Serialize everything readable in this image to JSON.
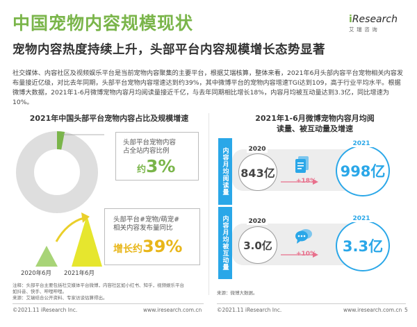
{
  "header": {
    "title": "中国宠物内容规模现状",
    "subtitle": "宠物内容热度持续上升，头部平台内容规模增长态势显著",
    "logo_text_prefix": "i",
    "logo_text": "Research",
    "logo_cn": "艾瑞咨询"
  },
  "paragraph": "社交媒体、内容社区及视频娱乐平台是当前宠物内容聚集的主要平台，根据艾瑞核算，整体来看，2021年6月头部内容平台宠物相关内容发布量接近亿级，对比去年同期，头部平台宠物内容增速达到约39%，其中微博平台的宠物内容增速TGI达到109，高于行业平均水平。根据微博大数据，2021年1-6月微博宠物内容月均阅读量接近千亿，与去年同期相比增长18%，内容月均被互动量达到3.3亿，同比增速为10%。",
  "left_panel": {
    "title": "2021年中国头部平台宠物内容占比及规模增速",
    "share_label_line1": "头部平台宠物内容",
    "share_label_line2": "占全站内容比例",
    "share_prefix": "约",
    "share_value": "3%",
    "growth_label_line1": "头部平台#宠物/萌宠#",
    "growth_label_line2": "相关内容发布量同比",
    "growth_prefix": "增长约",
    "growth_value": "39%",
    "period_a": "2020年6月",
    "period_b": "2021年6月",
    "note_line1": "注释：头部平台主要包括社交媒体平台微博，内容社区如小红书、知乎，视频娱乐平台",
    "note_line2": "如抖音、快手、哔哩哔哩。",
    "source": "来源：艾瑞结合公开资料、专家访谈估算得出。",
    "copyright": "©2021.11 iResearch Inc.",
    "website": "www.iresearch.com.cn"
  },
  "right_panel": {
    "title_line1": "2021年1-6月微博宠物内容月均阅",
    "title_line2": "读量、被互动量及增速",
    "rows": [
      {
        "label": "内容月均阅读量",
        "year_a": "2020",
        "value_a": "843亿",
        "growth": "+18%",
        "year_b": "2021",
        "value_b": "998亿"
      },
      {
        "label": "内容月均被互动量",
        "year_a": "2020",
        "value_a": "3.0亿",
        "growth": "+10%",
        "year_b": "2021",
        "value_b": "3.3亿"
      }
    ],
    "source": "来源：微博大数据。",
    "copyright": "©2021.11 iResearch Inc.",
    "website": "www.iresearch.com.cn",
    "page_number": "5"
  },
  "colors": {
    "brand_green": "#7ab54a",
    "accent_blue": "#2aa7e8",
    "growth_pink": "#e8708c"
  }
}
